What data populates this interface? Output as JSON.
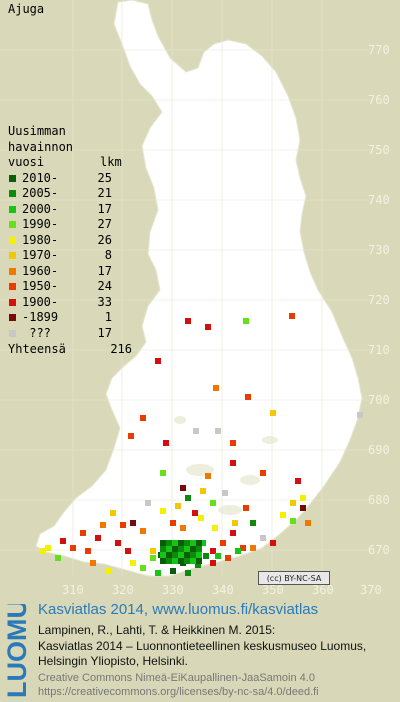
{
  "species": "Ajuga",
  "legend": {
    "title_lines": [
      "Uusimman",
      "havainnon"
    ],
    "col_period": "vuosi",
    "col_count": "lkm",
    "rows": [
      {
        "label": "2010-",
        "count": "25",
        "color": "#0a5e0a"
      },
      {
        "label": "2005-",
        "count": "21",
        "color": "#0c8a0c"
      },
      {
        "label": "2000-",
        "count": "17",
        "color": "#16c416"
      },
      {
        "label": "1990-",
        "count": "27",
        "color": "#66e01a"
      },
      {
        "label": "1980-",
        "count": "26",
        "color": "#f2f200"
      },
      {
        "label": "1970-",
        "count": "8",
        "color": "#f2c800"
      },
      {
        "label": "1960-",
        "count": "17",
        "color": "#f07800"
      },
      {
        "label": "1950-",
        "count": "24",
        "color": "#e83c00"
      },
      {
        "label": "1900-",
        "count": "33",
        "color": "#d21010"
      },
      {
        "label": "-1899",
        "count": "1",
        "color": "#7a0a0a"
      },
      {
        "label": " ???",
        "count": "17",
        "color": "#c8c8c8"
      }
    ],
    "total_label": "Yhteensä",
    "total_count": "216"
  },
  "map": {
    "y_axis": [
      "770",
      "760",
      "750",
      "740",
      "730",
      "720",
      "710",
      "700",
      "690",
      "680",
      "670"
    ],
    "x_axis": [
      "310",
      "320",
      "330",
      "340",
      "350",
      "360",
      "370"
    ],
    "land_color": "#ffffff",
    "background_color": "#d9d9b9"
  },
  "license_badge": "(cc) BY-NC-SA",
  "footer": {
    "logo_text": "LUOMUS",
    "line1": "Kasviatlas 2014, www.luomus.fi/kasviatlas",
    "line2": "Lampinen, R., Lahti, T. & Heikkinen M. 2015:",
    "line3": "Kasviatlas 2014 – Luonnontieteellinen keskusmuseo Luomus,",
    "line4": "Helsingin Yliopisto, Helsinki.",
    "line5": "Creative Commons Nimeä-EiKaupallinen-JaaSamoin 4.0",
    "line6": "https://creativecommons.org/licenses/by-nc-sa/4.0/deed.fi"
  }
}
